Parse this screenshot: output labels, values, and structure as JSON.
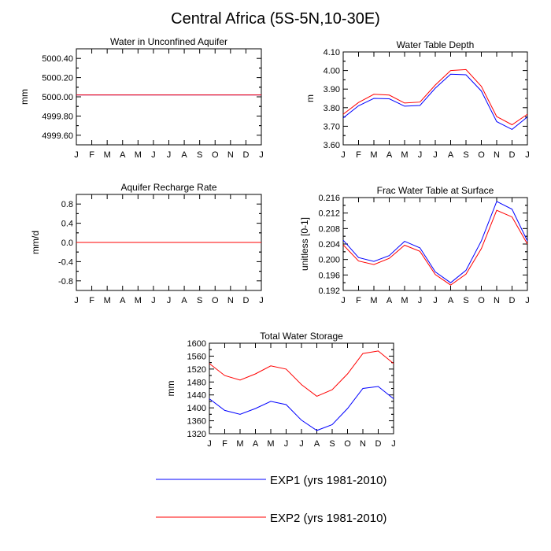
{
  "title": "Central Africa (5S-5N,10-30E)",
  "colors": {
    "exp1": "#0000ff",
    "exp2": "#ff0000",
    "axis": "#000000"
  },
  "months": [
    "J",
    "F",
    "M",
    "A",
    "M",
    "J",
    "J",
    "A",
    "S",
    "O",
    "N",
    "D",
    "J"
  ],
  "legend": [
    {
      "label": "EXP1 (yrs 1981-2010)",
      "color": "#0000ff"
    },
    {
      "label": "EXP2 (yrs 1981-2010)",
      "color": "#ff0000"
    }
  ],
  "chart_data": [
    {
      "type": "line",
      "title": "Water in Unconfined Aquifer",
      "ylabel": "mm",
      "ylim": [
        4999.5,
        5000.5
      ],
      "yticks": [
        4999.6,
        4999.8,
        5000.0,
        5000.2,
        5000.4
      ],
      "yticklabels": [
        "4999.60",
        "4999.80",
        "5000.00",
        "5000.20",
        "5000.40"
      ],
      "series": [
        {
          "name": "EXP1 (yrs 1981-2010)",
          "color": "#0000ff",
          "values": [
            5000.02,
            5000.02,
            5000.02,
            5000.02,
            5000.02,
            5000.02,
            5000.02,
            5000.02,
            5000.02,
            5000.02,
            5000.02,
            5000.02,
            5000.02
          ]
        },
        {
          "name": "EXP2 (yrs 1981-2010)",
          "color": "#ff0000",
          "values": [
            5000.02,
            5000.02,
            5000.02,
            5000.02,
            5000.02,
            5000.02,
            5000.02,
            5000.02,
            5000.02,
            5000.02,
            5000.02,
            5000.02,
            5000.02
          ]
        }
      ]
    },
    {
      "type": "line",
      "title": "Water Table Depth",
      "ylabel": "m",
      "ylim": [
        3.6,
        4.1
      ],
      "yticks": [
        3.6,
        3.7,
        3.8,
        3.9,
        4.0,
        4.1
      ],
      "yticklabels": [
        "3.60",
        "3.70",
        "3.80",
        "3.90",
        "4.00",
        "4.10"
      ],
      "series": [
        {
          "name": "EXP1 (yrs 1981-2010)",
          "color": "#0000ff",
          "values": [
            3.745,
            3.81,
            3.85,
            3.848,
            3.808,
            3.812,
            3.905,
            3.98,
            3.977,
            3.89,
            3.725,
            3.683,
            3.75
          ]
        },
        {
          "name": "EXP2 (yrs 1981-2010)",
          "color": "#ff0000",
          "values": [
            3.765,
            3.828,
            3.872,
            3.868,
            3.825,
            3.83,
            3.922,
            4.0,
            4.005,
            3.915,
            3.752,
            3.708,
            3.765
          ]
        }
      ]
    },
    {
      "type": "line",
      "title": "Aquifer Recharge Rate",
      "ylabel": "mm/d",
      "ylim": [
        -1.0,
        1.0
      ],
      "yticks": [
        -0.8,
        -0.4,
        0.0,
        0.4,
        0.8
      ],
      "yticklabels": [
        "-0.8",
        "-0.4",
        "0.0",
        "0.4",
        "0.8"
      ],
      "series": [
        {
          "name": "EXP1 (yrs 1981-2010)",
          "color": "#0000ff",
          "values": [
            0,
            0,
            0,
            0,
            0,
            0,
            0,
            0,
            0,
            0,
            0,
            0,
            0
          ]
        },
        {
          "name": "EXP2 (yrs 1981-2010)",
          "color": "#ff0000",
          "values": [
            0,
            0,
            0,
            0,
            0,
            0,
            0,
            0,
            0,
            0,
            0,
            0,
            0
          ]
        }
      ]
    },
    {
      "type": "line",
      "title": "Frac Water Table at Surface",
      "ylabel": "unitless [0-1]",
      "ylim": [
        0.192,
        0.216
      ],
      "yticks": [
        0.192,
        0.196,
        0.2,
        0.204,
        0.208,
        0.212,
        0.216
      ],
      "yticklabels": [
        "0.192",
        "0.196",
        "0.200",
        "0.204",
        "0.208",
        "0.212",
        "0.216"
      ],
      "series": [
        {
          "name": "EXP1 (yrs 1981-2010)",
          "color": "#0000ff",
          "values": [
            0.205,
            0.2005,
            0.1995,
            0.201,
            0.2047,
            0.203,
            0.1968,
            0.194,
            0.1972,
            0.2048,
            0.215,
            0.213,
            0.2048
          ]
        },
        {
          "name": "EXP2 (yrs 1981-2010)",
          "color": "#ff0000",
          "values": [
            0.2038,
            0.1996,
            0.1987,
            0.2003,
            0.2037,
            0.2021,
            0.1961,
            0.1934,
            0.1962,
            0.2028,
            0.2127,
            0.211,
            0.204
          ]
        }
      ]
    },
    {
      "type": "line",
      "title": "Total Water Storage",
      "ylabel": "mm",
      "ylim": [
        1320,
        1600
      ],
      "yticks": [
        1320,
        1360,
        1400,
        1440,
        1480,
        1520,
        1560,
        1600
      ],
      "yticklabels": [
        "1320",
        "1360",
        "1400",
        "1440",
        "1480",
        "1520",
        "1560",
        "1600"
      ],
      "series": [
        {
          "name": "EXP1 (yrs 1981-2010)",
          "color": "#0000ff",
          "values": [
            1428,
            1392,
            1380,
            1398,
            1420,
            1410,
            1362,
            1330,
            1348,
            1398,
            1460,
            1466,
            1428
          ]
        },
        {
          "name": "EXP2 (yrs 1981-2010)",
          "color": "#ff0000",
          "values": [
            1537,
            1500,
            1486,
            1505,
            1530,
            1520,
            1472,
            1436,
            1456,
            1505,
            1568,
            1576,
            1537
          ]
        }
      ]
    }
  ]
}
